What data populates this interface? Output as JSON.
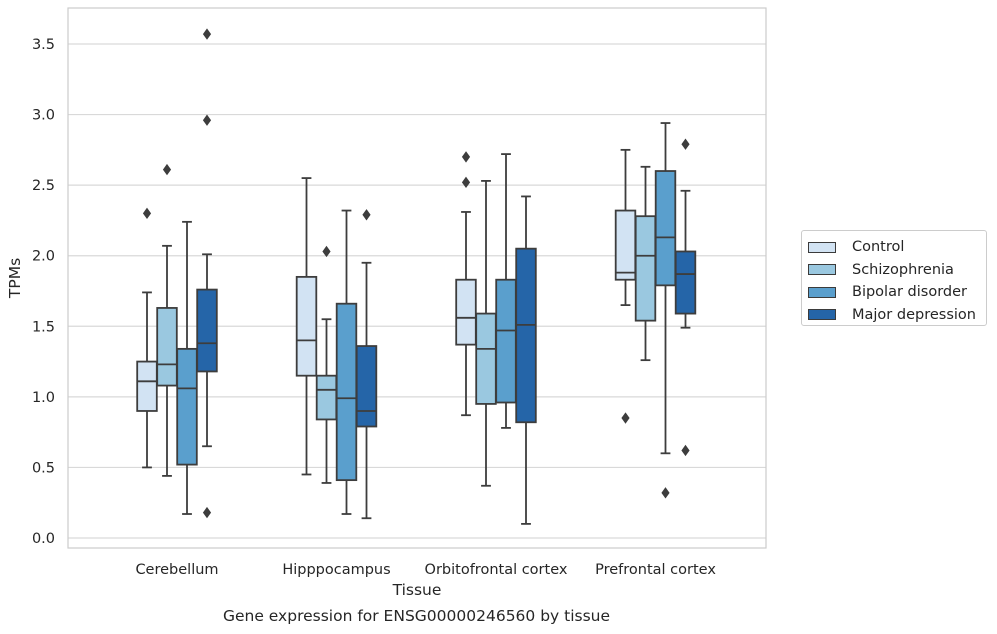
{
  "chart_data": {
    "type": "boxplot",
    "xlabel": "Tissue",
    "ylabel": "TPMs",
    "caption": "Gene expression for ENSG00000246560 by tissue",
    "ylim": [
      -0.07,
      3.75
    ],
    "yticks": [
      "0.0",
      "0.5",
      "1.0",
      "1.5",
      "2.0",
      "2.5",
      "3.0",
      "3.5"
    ],
    "grid": "horizontal",
    "legend_placement": "right",
    "categories": [
      "Cerebellum",
      "Hipppocampus",
      "Orbitofrontal cortex",
      "Prefrontal cortex"
    ],
    "series": [
      {
        "name": "Control",
        "color": "#d2e3f3",
        "boxes": [
          {
            "whisker_low": 0.5,
            "q1": 0.9,
            "median": 1.11,
            "q3": 1.25,
            "whisker_high": 1.74,
            "outliers": [
              2.3
            ]
          },
          {
            "whisker_low": 0.45,
            "q1": 1.15,
            "median": 1.4,
            "q3": 1.85,
            "whisker_high": 2.55,
            "outliers": []
          },
          {
            "whisker_low": 0.87,
            "q1": 1.37,
            "median": 1.56,
            "q3": 1.83,
            "whisker_high": 2.31,
            "outliers": [
              2.52,
              2.7
            ]
          },
          {
            "whisker_low": 1.65,
            "q1": 1.83,
            "median": 1.88,
            "q3": 2.32,
            "whisker_high": 2.75,
            "outliers": [
              0.85
            ]
          }
        ]
      },
      {
        "name": "Schizophrenia",
        "color": "#9ac8e0",
        "boxes": [
          {
            "whisker_low": 0.44,
            "q1": 1.08,
            "median": 1.23,
            "q3": 1.63,
            "whisker_high": 2.07,
            "outliers": [
              2.61
            ]
          },
          {
            "whisker_low": 0.39,
            "q1": 0.84,
            "median": 1.05,
            "q3": 1.15,
            "whisker_high": 1.55,
            "outliers": [
              2.03
            ]
          },
          {
            "whisker_low": 0.37,
            "q1": 0.95,
            "median": 1.34,
            "q3": 1.59,
            "whisker_high": 2.53,
            "outliers": []
          },
          {
            "whisker_low": 1.26,
            "q1": 1.54,
            "median": 2.0,
            "q3": 2.28,
            "whisker_high": 2.63,
            "outliers": []
          }
        ]
      },
      {
        "name": "Bipolar disorder",
        "color": "#5a9fcd",
        "boxes": [
          {
            "whisker_low": 0.17,
            "q1": 0.52,
            "median": 1.06,
            "q3": 1.34,
            "whisker_high": 2.24,
            "outliers": []
          },
          {
            "whisker_low": 0.17,
            "q1": 0.41,
            "median": 0.99,
            "q3": 1.66,
            "whisker_high": 2.32,
            "outliers": []
          },
          {
            "whisker_low": 0.78,
            "q1": 0.96,
            "median": 1.47,
            "q3": 1.83,
            "whisker_high": 2.72,
            "outliers": []
          },
          {
            "whisker_low": 0.6,
            "q1": 1.79,
            "median": 2.13,
            "q3": 2.6,
            "whisker_high": 2.94,
            "outliers": [
              0.32
            ]
          }
        ]
      },
      {
        "name": "Major depression",
        "color": "#2565a8",
        "boxes": [
          {
            "whisker_low": 0.65,
            "q1": 1.18,
            "median": 1.38,
            "q3": 1.76,
            "whisker_high": 2.01,
            "outliers": [
              0.18,
              2.96,
              3.57
            ]
          },
          {
            "whisker_low": 0.14,
            "q1": 0.79,
            "median": 0.9,
            "q3": 1.36,
            "whisker_high": 1.95,
            "outliers": [
              2.29
            ]
          },
          {
            "whisker_low": 0.1,
            "q1": 0.82,
            "median": 1.51,
            "q3": 2.05,
            "whisker_high": 2.42,
            "outliers": []
          },
          {
            "whisker_low": 1.49,
            "q1": 1.59,
            "median": 1.87,
            "q3": 2.03,
            "whisker_high": 2.46,
            "outliers": [
              0.62,
              2.79
            ]
          }
        ]
      }
    ]
  }
}
